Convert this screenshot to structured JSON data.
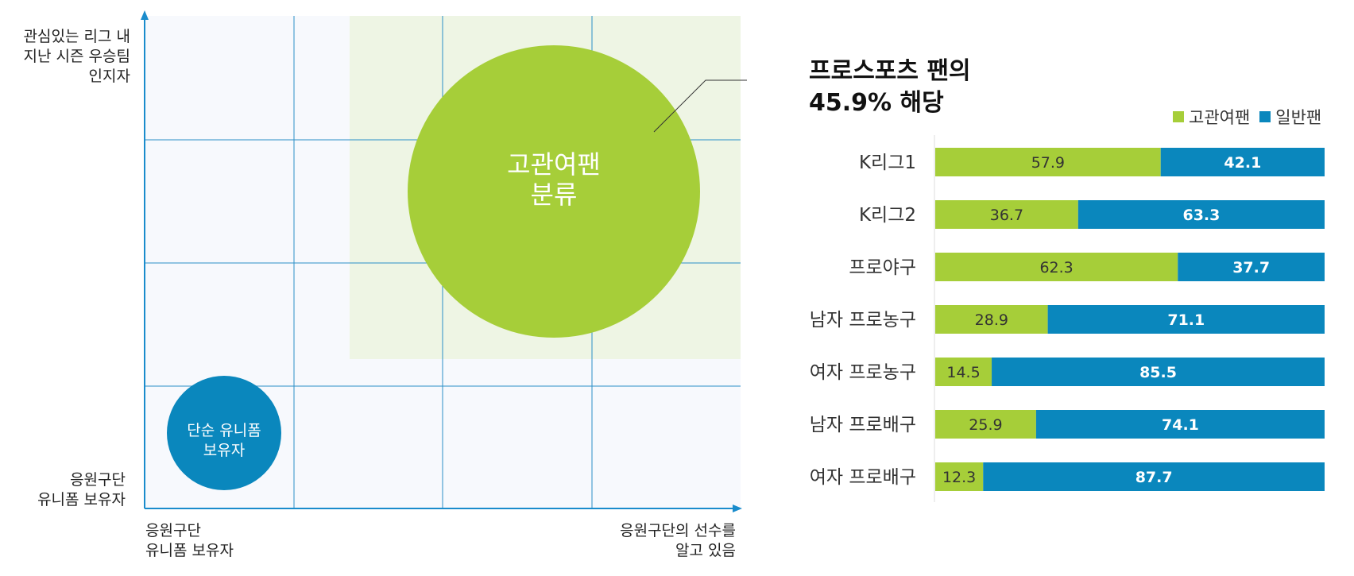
{
  "matrix": {
    "y_axis_top_label": [
      "관심있는 리그 내",
      "지난 시즌 우승팀",
      "인지자"
    ],
    "y_axis_bottom_label": [
      "응원구단",
      "유니폼 보유자"
    ],
    "x_axis_left_label": [
      "응원구단",
      "유니폼 보유자"
    ],
    "x_axis_right_label": [
      "응원구단의 선수를",
      "알고 있음"
    ],
    "big_circle_label": [
      "고관여팬",
      "분류"
    ],
    "small_circle_label": [
      "단순 유니폼",
      "보유자"
    ],
    "callout": [
      "프로스포츠 팬의",
      "45.9% 해당"
    ],
    "colors": {
      "green": "#a6ce39",
      "blue": "#0a87bd",
      "highlight": "#eef5e4",
      "grid": "#2b8fc8",
      "bg": "#f7f9fd"
    }
  },
  "chart_data": {
    "type": "bar",
    "orientation": "horizontal",
    "stacked": true,
    "categories": [
      "K리그1",
      "K리그2",
      "프로야구",
      "남자 프로농구",
      "여자 프로농구",
      "남자 프로배구",
      "여자 프로배구"
    ],
    "series": [
      {
        "name": "고관여팬",
        "color": "#a6ce39",
        "values": [
          57.9,
          36.7,
          62.3,
          28.9,
          14.5,
          25.9,
          12.3
        ]
      },
      {
        "name": "일반팬",
        "color": "#0a87bd",
        "values": [
          42.1,
          63.3,
          37.7,
          71.1,
          85.5,
          74.1,
          87.7
        ]
      }
    ],
    "xlim": [
      0,
      100
    ],
    "legend": "top-right"
  }
}
